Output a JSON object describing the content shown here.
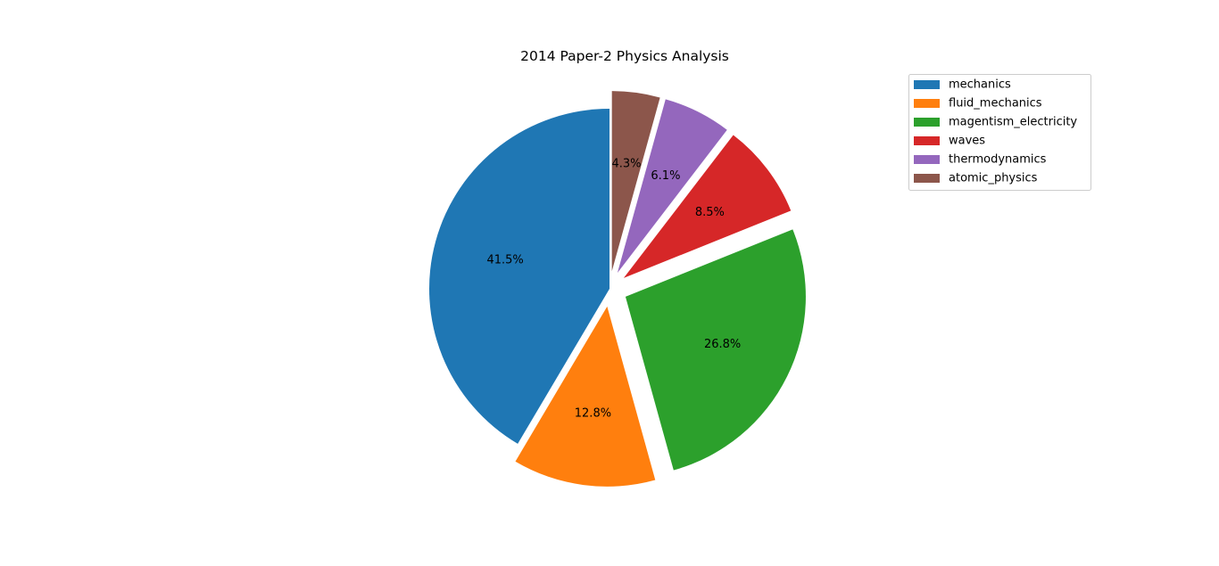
{
  "chart_data": {
    "type": "pie",
    "title": "2014 Paper-2 Physics Analysis",
    "legend_position": "top-right",
    "start_angle_deg": 90,
    "direction": "counterclockwise",
    "slices": [
      {
        "label": "mechanics",
        "percent": 41.5,
        "pct_label": "41.5%",
        "color": "#1f77b4",
        "exploded": false
      },
      {
        "label": "fluid_mechanics",
        "percent": 12.8,
        "pct_label": "12.8%",
        "color": "#ff7f0e",
        "exploded": true
      },
      {
        "label": "magentism_electricity",
        "percent": 26.8,
        "pct_label": "26.8%",
        "color": "#2ca02c",
        "exploded": true
      },
      {
        "label": "waves",
        "percent": 8.5,
        "pct_label": "8.5%",
        "color": "#d62728",
        "exploded": true
      },
      {
        "label": "thermodynamics",
        "percent": 6.1,
        "pct_label": "6.1%",
        "color": "#9467bd",
        "exploded": true
      },
      {
        "label": "atomic_physics",
        "percent": 4.3,
        "pct_label": "4.3%",
        "color": "#8c564b",
        "exploded": true
      }
    ]
  }
}
